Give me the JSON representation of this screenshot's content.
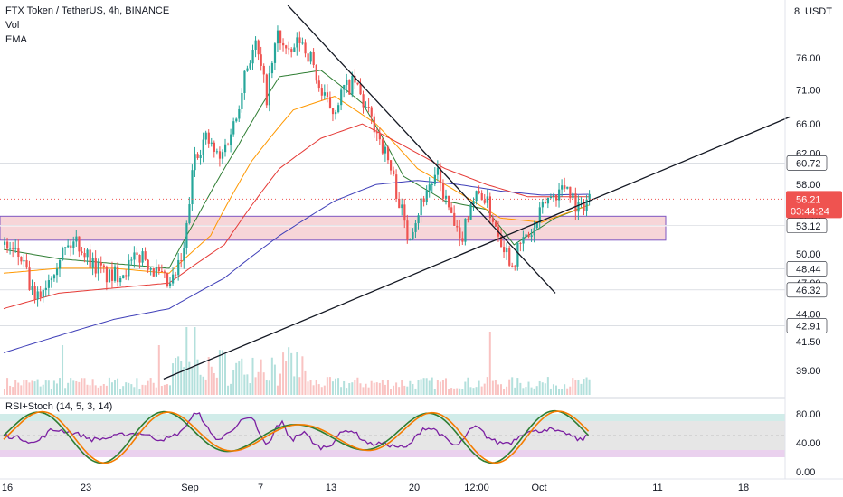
{
  "header": {
    "symbol_line": "FTX Token / TetherUS, 4h, BINANCE",
    "indicator_vol": "Vol",
    "indicator_ema": "EMA",
    "currency": "USDT"
  },
  "oscillator": {
    "label": "RSI+Stoch (14, 5, 3, 14)",
    "ticks": [
      "80.00",
      "40.00",
      "0.00"
    ]
  },
  "colors": {
    "up": "#26a69a",
    "down": "#ef5350",
    "ema_fast": "#2e7d32",
    "ema_mid": "#ff9800",
    "ema_slow": "#e53935",
    "ema_long": "#3f3fb8",
    "zone_fill": "#f4c7cb",
    "zone_border": "#7e57c2",
    "trendline": "#131722",
    "last_price_bg": "#ef5350"
  },
  "chart_data": {
    "type": "candlestick",
    "symbol": "FTX Token / TetherUS",
    "interval": "4h",
    "exchange": "BINANCE",
    "y_axis_ticks": [
      76.0,
      71.0,
      66.0,
      62.0,
      58.0,
      50.0,
      47.0,
      44.0,
      41.5,
      39.0
    ],
    "y_axis_tick_labels": [
      "76.00",
      "71.00",
      "66.00",
      "62.00",
      "58.00",
      "50.00",
      "47.00",
      "44.00",
      "41.50",
      "39.00"
    ],
    "x_axis_labels": [
      "16",
      "23",
      "Sep",
      "7",
      "13",
      "20",
      "12:00",
      "Oct",
      "11",
      "18"
    ],
    "ylim": [
      38,
      85
    ],
    "price_levels": [
      60.72,
      53.12,
      48.44,
      46.32,
      42.91
    ],
    "price_level_labels": [
      "60.72",
      "53.12",
      "48.44",
      "46.32",
      "42.91"
    ],
    "top_tick_label": "8",
    "last_price": 56.21,
    "last_price_label": "56.21",
    "countdown": "03:44:24",
    "partial_tick_label": "54.?0",
    "zone": {
      "from": 51.5,
      "to": 54.2
    },
    "close_path": [
      {
        "t": 0,
        "p": 51.0
      },
      {
        "t": 6,
        "p": 49.5
      },
      {
        "t": 11,
        "p": 45.0
      },
      {
        "t": 15,
        "p": 47.0
      },
      {
        "t": 20,
        "p": 50.0
      },
      {
        "t": 26,
        "p": 51.5
      },
      {
        "t": 32,
        "p": 49.0
      },
      {
        "t": 38,
        "p": 47.5
      },
      {
        "t": 44,
        "p": 48.5
      },
      {
        "t": 50,
        "p": 50.0
      },
      {
        "t": 55,
        "p": 48.0
      },
      {
        "t": 60,
        "p": 46.5
      },
      {
        "t": 65,
        "p": 50.0
      },
      {
        "t": 69,
        "p": 62.0
      },
      {
        "t": 73,
        "p": 64.0
      },
      {
        "t": 78,
        "p": 61.0
      },
      {
        "t": 84,
        "p": 67.0
      },
      {
        "t": 87,
        "p": 74.0
      },
      {
        "t": 91,
        "p": 78.0
      },
      {
        "t": 95,
        "p": 70.0
      },
      {
        "t": 99,
        "p": 80.0
      },
      {
        "t": 103,
        "p": 76.0
      },
      {
        "t": 107,
        "p": 79.0
      },
      {
        "t": 111,
        "p": 76.0
      },
      {
        "t": 115,
        "p": 70.0
      },
      {
        "t": 119,
        "p": 68.0
      },
      {
        "t": 123,
        "p": 71.0
      },
      {
        "t": 127,
        "p": 72.0
      },
      {
        "t": 131,
        "p": 68.0
      },
      {
        "t": 135,
        "p": 65.0
      },
      {
        "t": 139,
        "p": 61.0
      },
      {
        "t": 143,
        "p": 56.0
      },
      {
        "t": 146,
        "p": 52.0
      },
      {
        "t": 149,
        "p": 54.0
      },
      {
        "t": 153,
        "p": 57.5
      },
      {
        "t": 157,
        "p": 59.0
      },
      {
        "t": 161,
        "p": 55.0
      },
      {
        "t": 165,
        "p": 51.0
      },
      {
        "t": 169,
        "p": 56.0
      },
      {
        "t": 173,
        "p": 57.0
      },
      {
        "t": 177,
        "p": 54.0
      },
      {
        "t": 181,
        "p": 51.0
      },
      {
        "t": 184,
        "p": 49.0
      },
      {
        "t": 188,
        "p": 51.5
      },
      {
        "t": 192,
        "p": 52.5
      },
      {
        "t": 196,
        "p": 56.0
      },
      {
        "t": 200,
        "p": 57.0
      },
      {
        "t": 204,
        "p": 58.0
      },
      {
        "t": 208,
        "p": 55.0
      },
      {
        "t": 212,
        "p": 56.5
      }
    ],
    "ema_lines": [
      {
        "name": "ema-fast",
        "values": [
          {
            "t": 0,
            "p": 50.5
          },
          {
            "t": 20,
            "p": 49.5
          },
          {
            "t": 40,
            "p": 49.0
          },
          {
            "t": 60,
            "p": 48.5
          },
          {
            "t": 70,
            "p": 54.0
          },
          {
            "t": 85,
            "p": 63.0
          },
          {
            "t": 100,
            "p": 73.0
          },
          {
            "t": 115,
            "p": 74.0
          },
          {
            "t": 130,
            "p": 69.0
          },
          {
            "t": 145,
            "p": 59.0
          },
          {
            "t": 160,
            "p": 56.0
          },
          {
            "t": 175,
            "p": 55.0
          },
          {
            "t": 185,
            "p": 51.0
          },
          {
            "t": 200,
            "p": 54.0
          },
          {
            "t": 212,
            "p": 55.5
          }
        ]
      },
      {
        "name": "ema-mid",
        "values": [
          {
            "t": 0,
            "p": 48.0
          },
          {
            "t": 20,
            "p": 48.5
          },
          {
            "t": 40,
            "p": 48.5
          },
          {
            "t": 60,
            "p": 48.0
          },
          {
            "t": 75,
            "p": 52.0
          },
          {
            "t": 90,
            "p": 61.0
          },
          {
            "t": 105,
            "p": 68.0
          },
          {
            "t": 120,
            "p": 70.0
          },
          {
            "t": 135,
            "p": 66.0
          },
          {
            "t": 150,
            "p": 60.0
          },
          {
            "t": 165,
            "p": 57.0
          },
          {
            "t": 180,
            "p": 54.0
          },
          {
            "t": 195,
            "p": 53.5
          },
          {
            "t": 212,
            "p": 55.5
          }
        ]
      },
      {
        "name": "ema-slow",
        "values": [
          {
            "t": 0,
            "p": 44.5
          },
          {
            "t": 20,
            "p": 46.0
          },
          {
            "t": 40,
            "p": 46.5
          },
          {
            "t": 60,
            "p": 47.0
          },
          {
            "t": 80,
            "p": 51.0
          },
          {
            "t": 100,
            "p": 60.0
          },
          {
            "t": 115,
            "p": 64.0
          },
          {
            "t": 130,
            "p": 66.0
          },
          {
            "t": 145,
            "p": 63.0
          },
          {
            "t": 160,
            "p": 60.0
          },
          {
            "t": 175,
            "p": 58.0
          },
          {
            "t": 190,
            "p": 56.5
          },
          {
            "t": 212,
            "p": 56.5
          }
        ]
      },
      {
        "name": "ema-long",
        "values": [
          {
            "t": 0,
            "p": 40.5
          },
          {
            "t": 20,
            "p": 42.0
          },
          {
            "t": 40,
            "p": 43.5
          },
          {
            "t": 60,
            "p": 44.5
          },
          {
            "t": 80,
            "p": 47.5
          },
          {
            "t": 100,
            "p": 52.0
          },
          {
            "t": 120,
            "p": 56.0
          },
          {
            "t": 135,
            "p": 58.0
          },
          {
            "t": 150,
            "p": 58.5
          },
          {
            "t": 165,
            "p": 58.0
          },
          {
            "t": 180,
            "p": 57.2
          },
          {
            "t": 195,
            "p": 56.7
          },
          {
            "t": 212,
            "p": 56.8
          }
        ]
      }
    ],
    "trendlines": [
      {
        "name": "downtrend",
        "from": {
          "t": 103,
          "p": 85.0
        },
        "to": {
          "t": 200,
          "p": 46.0
        }
      },
      {
        "name": "uptrend",
        "from": {
          "t": 58,
          "p": 38.3
        },
        "to": {
          "t": 285,
          "p": 67.0
        }
      }
    ],
    "oscillator_series": [
      {
        "name": "rsi",
        "color": "#7b1fa2"
      },
      {
        "name": "stoch-k",
        "color": "#2e7d32"
      },
      {
        "name": "stoch-d",
        "color": "#f57c00"
      }
    ]
  }
}
